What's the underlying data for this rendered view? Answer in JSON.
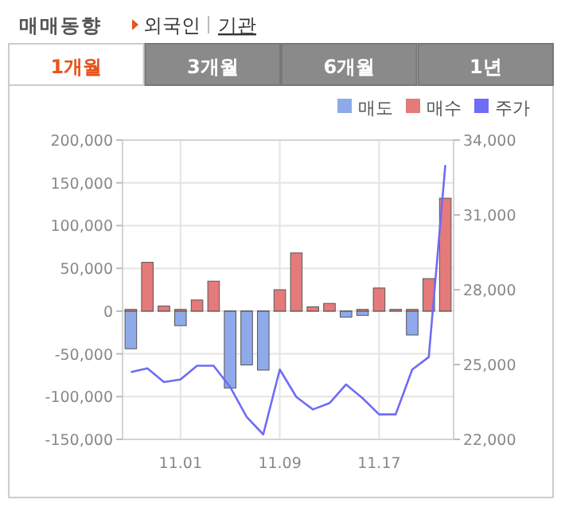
{
  "chart_data": {
    "type": "bar",
    "title": "매매동향",
    "annotations": [
      "외국인",
      "기관",
      "1개월",
      "3개월",
      "6개월",
      "1년"
    ],
    "categories": [
      null,
      null,
      null,
      "11.01",
      null,
      null,
      null,
      null,
      null,
      "11.09",
      null,
      null,
      null,
      null,
      null,
      "11.17",
      null,
      null,
      null,
      null
    ],
    "series": [
      {
        "name": "매도",
        "color": "#8eaaea",
        "values": [
          -44000,
          0,
          0,
          -17000,
          0,
          0,
          -90000,
          -63000,
          -69000,
          0,
          0,
          0,
          0,
          -7000,
          -5000,
          0,
          0,
          -28000,
          0,
          0
        ]
      },
      {
        "name": "매수",
        "color": "#e57a7a",
        "values": [
          2000,
          57000,
          6000,
          2000,
          13000,
          35000,
          0,
          0,
          0,
          25000,
          68000,
          5000,
          9000,
          0,
          2000,
          27000,
          2000,
          2000,
          38000,
          132000
        ]
      },
      {
        "name": "주가",
        "type": "line",
        "axis": "y2",
        "color": "#6f6cf5",
        "values": [
          24700,
          24850,
          24300,
          24400,
          24950,
          24950,
          24100,
          22900,
          22200,
          24800,
          23700,
          23200,
          23450,
          24200,
          23650,
          23000,
          23000,
          24800,
          25300,
          33000
        ]
      }
    ],
    "ylim": [
      -150000,
      200000
    ],
    "yticks": [
      {
        "value": -150000,
        "label": "-150,000"
      },
      {
        "value": -100000,
        "label": "-100,000"
      },
      {
        "value": -50000,
        "label": "-50,000"
      },
      0,
      {
        "value": 50000,
        "label": "50,000"
      },
      {
        "value": 100000,
        "label": "100,000"
      },
      {
        "value": 150000,
        "label": "150,000"
      },
      {
        "value": 200000,
        "label": "200,000"
      }
    ],
    "y2lim": [
      22000,
      34000
    ],
    "y2ticks": [
      {
        "value": 22000,
        "label": "22,000"
      },
      {
        "value": 25000,
        "label": "25,000"
      },
      {
        "value": 28000,
        "label": "28,000"
      },
      {
        "value": 31000,
        "label": "31,000"
      },
      {
        "value": 34000,
        "label": "34,000"
      }
    ],
    "grid": true,
    "legend": "top right"
  }
}
